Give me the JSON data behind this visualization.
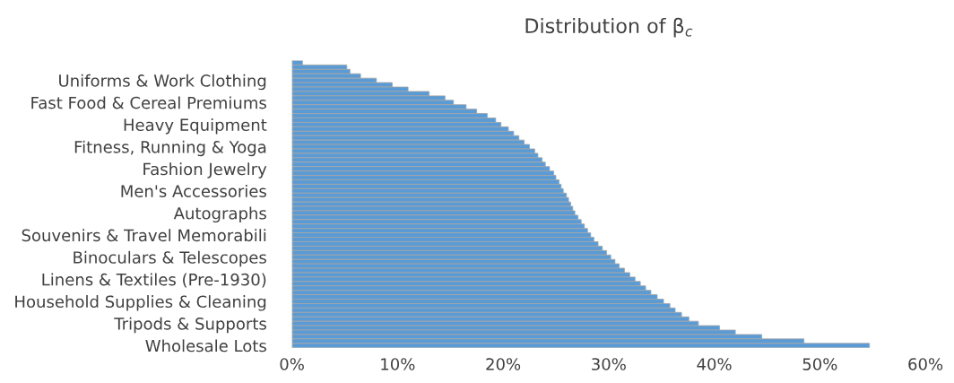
{
  "chart_data": {
    "type": "bar",
    "orientation": "horizontal",
    "title": "Distribution of β$_{c}$",
    "categories": [
      null,
      null,
      null,
      null,
      "Uniforms & Work Clothing",
      null,
      null,
      null,
      null,
      "Fast Food & Cereal Premiums",
      null,
      null,
      null,
      null,
      "Heavy Equipment",
      null,
      null,
      null,
      null,
      "Fitness, Running & Yoga",
      null,
      null,
      null,
      null,
      "Fashion Jewelry",
      null,
      null,
      null,
      null,
      "Men's Accessories",
      null,
      null,
      null,
      null,
      "Autographs",
      null,
      null,
      null,
      null,
      "Souvenirs & Travel Memorabili",
      null,
      null,
      null,
      null,
      "Binoculars & Telescopes",
      null,
      null,
      null,
      null,
      "Linens & Textiles (Pre-1930)",
      null,
      null,
      null,
      null,
      "Household Supplies & Cleaning",
      null,
      null,
      null,
      null,
      "Tripods & Supports",
      null,
      null,
      null,
      null,
      "Wholesale Lots"
    ],
    "values": [
      1.0,
      5.2,
      5.5,
      6.5,
      8.0,
      9.5,
      11.0,
      13.0,
      14.5,
      15.3,
      16.5,
      17.5,
      18.5,
      19.3,
      19.8,
      20.5,
      21.0,
      21.5,
      22.0,
      22.5,
      23.0,
      23.3,
      23.7,
      24.0,
      24.4,
      24.8,
      25.0,
      25.3,
      25.5,
      25.7,
      26.0,
      26.2,
      26.4,
      26.6,
      26.8,
      27.1,
      27.4,
      27.7,
      28.0,
      28.3,
      28.6,
      29.0,
      29.4,
      29.8,
      30.2,
      30.6,
      31.0,
      31.5,
      32.0,
      32.5,
      33.0,
      33.5,
      34.0,
      34.6,
      35.2,
      35.8,
      36.3,
      36.9,
      37.6,
      38.5,
      40.5,
      42.0,
      44.5,
      48.5,
      54.7
    ],
    "color": "#5b9bd5",
    "xlim": [
      0,
      60
    ],
    "xticks": [
      {
        "value": 0,
        "label": "0%"
      },
      {
        "value": 10,
        "label": "10%"
      },
      {
        "value": 20,
        "label": "20%"
      },
      {
        "value": 30,
        "label": "30%"
      },
      {
        "value": 40,
        "label": "40%"
      },
      {
        "value": 50,
        "label": "50%"
      },
      {
        "value": 60,
        "label": "60%"
      }
    ],
    "grid": false,
    "legend": false
  }
}
